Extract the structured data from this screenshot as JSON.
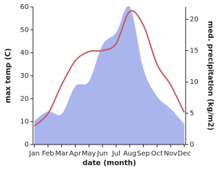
{
  "chart_data": {
    "type": "area-line",
    "x_label": "date (month)",
    "y_label": "max temp (C)",
    "y2_label": "med. precipitation (kg/m2)",
    "categories": [
      "Jan",
      "Feb",
      "Mar",
      "Apr",
      "May",
      "Jun",
      "Jul",
      "Aug",
      "Sep",
      "Oct",
      "Nov",
      "Dec"
    ],
    "ylim": [
      0,
      60
    ],
    "yticks": [
      0,
      10,
      20,
      30,
      40,
      50,
      60
    ],
    "y2lim": [
      0,
      22
    ],
    "y2ticks": [
      0,
      5,
      10,
      15,
      20
    ],
    "series": [
      {
        "name": "med. precipitation",
        "color": "#aab5ee",
        "axis": "y2",
        "values": [
          3.8,
          5.3,
          4.9,
          9.3,
          10.1,
          15.9,
          17.9,
          22,
          12.1,
          7.7,
          5.7,
          3.3
        ]
      },
      {
        "name": "max temp",
        "color": "#c9575a",
        "values": [
          8.1,
          13.5,
          26,
          36.5,
          40.5,
          41,
          44,
          58,
          52,
          35,
          26,
          14
        ]
      }
    ]
  }
}
